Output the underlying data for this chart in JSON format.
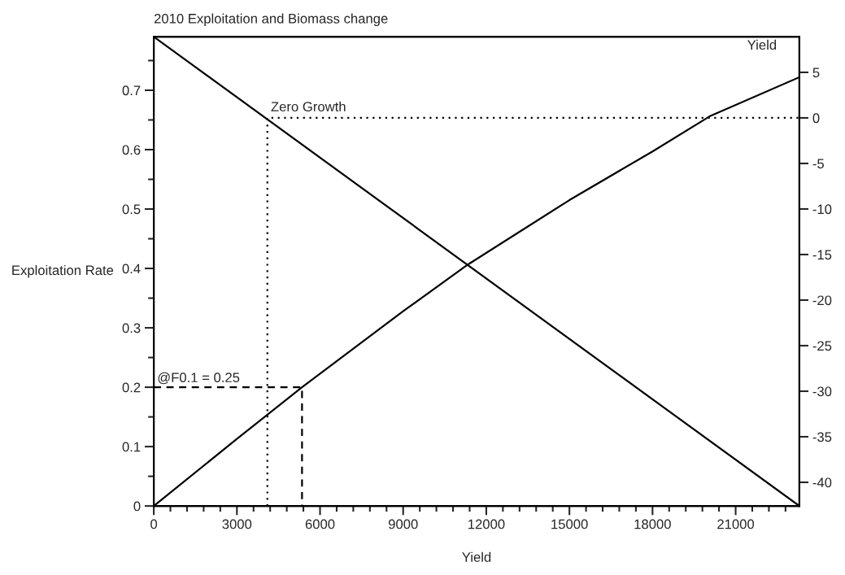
{
  "chart_data": {
    "type": "line",
    "title": "2010 Exploitation and Biomass change",
    "xlabel": "Yield",
    "ylabel": "Exploitation Rate",
    "xlim": [
      0,
      23300
    ],
    "xticks": [
      0,
      {
        "value": 600,
        "label": null
      },
      {
        "value": 1200,
        "label": null
      },
      {
        "value": 1800,
        "label": null
      },
      {
        "value": 2400,
        "label": null
      },
      3000,
      {
        "value": 3600,
        "label": null
      },
      {
        "value": 4200,
        "label": null
      },
      {
        "value": 4800,
        "label": null
      },
      {
        "value": 5400,
        "label": null
      },
      6000,
      {
        "value": 6600,
        "label": null
      },
      {
        "value": 7200,
        "label": null
      },
      {
        "value": 7800,
        "label": null
      },
      {
        "value": 8400,
        "label": null
      },
      9000,
      {
        "value": 9600,
        "label": null
      },
      {
        "value": 10200,
        "label": null
      },
      {
        "value": 10800,
        "label": null
      },
      {
        "value": 11400,
        "label": null
      },
      12000,
      {
        "value": 12600,
        "label": null
      },
      {
        "value": 13200,
        "label": null
      },
      {
        "value": 13800,
        "label": null
      },
      {
        "value": 14400,
        "label": null
      },
      15000,
      {
        "value": 15600,
        "label": null
      },
      {
        "value": 16200,
        "label": null
      },
      {
        "value": 16800,
        "label": null
      },
      {
        "value": 17400,
        "label": null
      },
      18000,
      {
        "value": 18600,
        "label": null
      },
      {
        "value": 19200,
        "label": null
      },
      {
        "value": 19800,
        "label": null
      },
      {
        "value": 20400,
        "label": null
      },
      21000,
      {
        "value": 21600,
        "label": null
      },
      {
        "value": 22200,
        "label": null
      },
      {
        "value": 22800,
        "label": null
      }
    ],
    "ylim": [
      0,
      0.79
    ],
    "yticks": [
      0,
      {
        "value": 0.05,
        "label": null
      },
      0.1,
      {
        "value": 0.15,
        "label": null
      },
      0.2,
      {
        "value": 0.25,
        "label": null
      },
      0.3,
      {
        "value": 0.35,
        "label": null
      },
      0.4,
      {
        "value": 0.45,
        "label": null
      },
      0.5,
      {
        "value": 0.55,
        "label": null
      },
      0.6,
      {
        "value": 0.65,
        "label": null
      },
      0.7,
      {
        "value": 0.75,
        "label": null
      }
    ],
    "y2lim": [
      -42.6,
      8.9
    ],
    "y2ticks": [
      -40,
      -35,
      -30,
      -25,
      -20,
      -15,
      -10,
      -5,
      0,
      5
    ],
    "grid": false,
    "series": [
      {
        "name": "Yield",
        "color": "#000000",
        "line_style": "solid",
        "x": [
          0,
          3000,
          5350,
          9000,
          11350,
          15000,
          18000,
          20060,
          23300
        ],
        "values": [
          0,
          0.113,
          0.2,
          0.328,
          0.407,
          0.515,
          0.597,
          0.656,
          0.722
        ]
      },
      {
        "color": "#000000",
        "line_style": "solid",
        "axis": "y2",
        "x": [
          0,
          23300
        ],
        "values": [
          8.9,
          -42.6
        ]
      },
      {
        "color": "#000000",
        "line_style": "dotted",
        "axis": "y2",
        "x": [
          4100,
          4100,
          23300
        ],
        "values": [
          -42.6,
          0,
          0
        ]
      },
      {
        "color": "#000000",
        "line_style": "dashed",
        "x": [
          0,
          5350,
          5350
        ],
        "values": [
          0.2,
          0.2,
          0
        ]
      }
    ],
    "annotations": [
      {
        "text": "Zero Growth",
        "x": 4100,
        "y": 0.656
      },
      {
        "text": "@F0.1 = 0.25",
        "x": 0,
        "y": 0.2
      }
    ]
  }
}
